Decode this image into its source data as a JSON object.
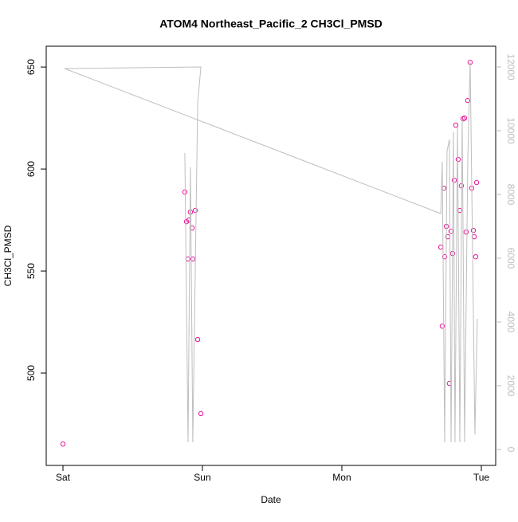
{
  "chart_data": {
    "type": "scatter",
    "title": "ATOM4 Northeast_Pacific_2 CH3Cl_PMSD",
    "x_label": "Date",
    "y_label": "CH3Cl_PMSD",
    "xlim": [
      -0.12,
      3.103
    ],
    "xticks": [
      {
        "value": 0,
        "label": "Sat"
      },
      {
        "value": 1,
        "label": "Sun"
      },
      {
        "value": 2,
        "label": "Mon"
      },
      {
        "value": 3,
        "label": "Tue"
      }
    ],
    "ylim": [
      454.7,
      660.2
    ],
    "yticks": [
      500,
      550,
      600,
      650
    ],
    "y2lim": [
      -500,
      12650
    ],
    "y2ticks": [
      0,
      2000,
      4000,
      6000,
      8000,
      10000,
      12000
    ],
    "series": [
      {
        "type": "scatter",
        "color": "#e8199a",
        "x": [
          0,
          0.874,
          0.886,
          0.903,
          0.897,
          0.914,
          0.926,
          0.931,
          0.949,
          0.966,
          0.989,
          2.709,
          2.72,
          2.731,
          2.737,
          2.749,
          2.76,
          2.771,
          2.783,
          2.794,
          2.806,
          2.817,
          2.834,
          2.846,
          2.857,
          2.869,
          2.88,
          2.891,
          2.903,
          2.92,
          2.931,
          2.943,
          2.949,
          2.96,
          2.966
        ],
        "values": [
          465.2,
          588.7,
          574.2,
          575,
          555.9,
          578.9,
          571.1,
          555.9,
          579.7,
          516.4,
          480.1,
          561.7,
          523,
          590.6,
          557,
          571.9,
          566.8,
          494.9,
          569.5,
          558.6,
          594.5,
          621.5,
          604.7,
          579.7,
          591.8,
          624.6,
          625,
          569.1,
          633.6,
          652.3,
          590.6,
          569.9,
          566.8,
          557,
          593.4
        ]
      },
      {
        "type": "line",
        "axis": "y2",
        "color": "#bebebe",
        "x": [
          0.874,
          0.897,
          0.914,
          0.931,
          0.966,
          0.989,
          0.011,
          2.709,
          2.72,
          2.737,
          2.754,
          2.771,
          2.783,
          2.8,
          2.811,
          2.829,
          2.846,
          2.863,
          2.88,
          2.903,
          2.92,
          2.954,
          2.971
        ],
        "values": [
          9300,
          225,
          8850,
          225,
          10850,
          12000,
          11950,
          7400,
          9025,
          225,
          9350,
          9725,
          225,
          9975,
          225,
          10100,
          225,
          10350,
          225,
          9100,
          12150,
          475,
          4100
        ]
      }
    ]
  }
}
